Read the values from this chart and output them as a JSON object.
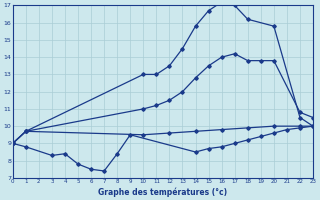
{
  "title": "Graphe des températures (°c)",
  "bg_color": "#cde8ed",
  "line_color": "#1a3a8a",
  "grid_color": "#aacdd5",
  "xlim": [
    0,
    23
  ],
  "ylim": [
    7,
    17
  ],
  "xticks": [
    0,
    1,
    2,
    3,
    4,
    5,
    6,
    7,
    8,
    9,
    10,
    11,
    12,
    13,
    14,
    15,
    16,
    17,
    18,
    19,
    20,
    21,
    22,
    23
  ],
  "yticks": [
    7,
    8,
    9,
    10,
    11,
    12,
    13,
    14,
    15,
    16,
    17
  ],
  "series": [
    {
      "name": "wavy_low",
      "x": [
        0,
        1,
        3,
        4,
        5,
        6,
        7,
        8,
        9,
        14,
        15,
        16,
        17,
        18,
        19,
        20,
        21,
        22,
        23
      ],
      "y": [
        9,
        8.8,
        8.3,
        8.4,
        7.8,
        7.5,
        7.4,
        8.4,
        9.5,
        8.5,
        8.7,
        8.8,
        9.0,
        9.2,
        9.4,
        9.6,
        9.8,
        9.9,
        10.0
      ]
    },
    {
      "name": "upper_peak",
      "x": [
        0,
        1,
        10,
        11,
        12,
        13,
        14,
        15,
        16,
        17,
        18,
        20,
        22,
        23
      ],
      "y": [
        9,
        9.7,
        13.0,
        13.0,
        13.5,
        14.5,
        15.8,
        16.7,
        17.2,
        17.0,
        16.2,
        15.8,
        10.5,
        10.0
      ]
    },
    {
      "name": "mid_line",
      "x": [
        0,
        1,
        10,
        11,
        12,
        13,
        14,
        15,
        16,
        17,
        18,
        19,
        20,
        22,
        23
      ],
      "y": [
        9,
        9.7,
        11.0,
        11.2,
        11.5,
        12.0,
        12.8,
        13.5,
        14.0,
        14.2,
        13.8,
        13.8,
        13.8,
        10.8,
        10.5
      ]
    },
    {
      "name": "flat_rise",
      "x": [
        0,
        1,
        10,
        12,
        14,
        16,
        18,
        20,
        22,
        23
      ],
      "y": [
        9,
        9.7,
        9.5,
        9.6,
        9.7,
        9.8,
        9.9,
        10.0,
        10.0,
        10.0
      ]
    }
  ]
}
